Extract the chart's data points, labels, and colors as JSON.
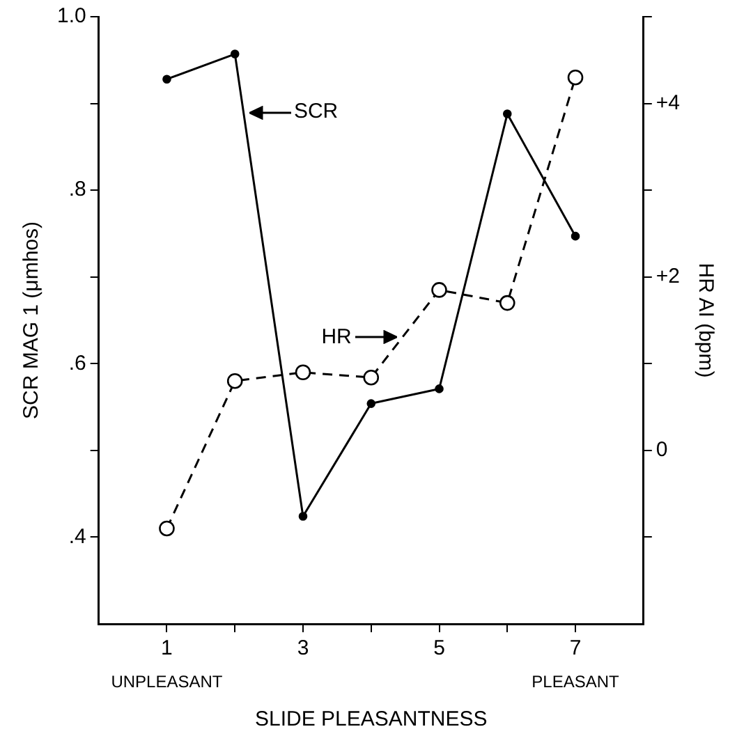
{
  "chart_data": {
    "type": "line",
    "xlabel": "SLIDE PLEASANTNESS",
    "ylabel": "SCR MAG 1 (μmhos)",
    "y2label": "HR AI (bpm)",
    "x": [
      1,
      2,
      3,
      4,
      5,
      6,
      7
    ],
    "series": [
      {
        "color": "#000000",
        "values": [
          0.928,
          0.957,
          0.424,
          0.554,
          0.571,
          0.888,
          0.747
        ],
        "marker": "circle",
        "line_style": "solid"
      },
      {
        "color": "#000000",
        "axis": "y2",
        "values": [
          -0.9,
          0.8,
          0.9,
          0.84,
          1.85,
          1.7,
          4.3
        ],
        "marker": "circle",
        "line_style": "dashed"
      }
    ],
    "xlim": [
      0,
      8
    ],
    "xticks": [
      1,
      {
        "value": 2,
        "label": null
      },
      3,
      {
        "value": 4,
        "label": null
      },
      5,
      {
        "value": 6,
        "label": null
      },
      7
    ],
    "ylim": [
      0.3,
      1.0
    ],
    "yticks": [
      {
        "value": 0.4,
        "label": ".4"
      },
      {
        "value": 0.5,
        "label": null
      },
      {
        "value": 0.6,
        "label": ".6"
      },
      {
        "value": 0.7,
        "label": null
      },
      {
        "value": 0.8,
        "label": ".8"
      },
      {
        "value": 0.9,
        "label": null
      },
      {
        "value": 1.0,
        "label": "1.0"
      }
    ],
    "y2lim": [
      -2,
      5
    ],
    "y2ticks": [
      {
        "value": -1,
        "label": null
      },
      0,
      {
        "value": 1,
        "label": null
      },
      {
        "value": 2,
        "label": "+2"
      },
      {
        "value": 3,
        "label": null
      },
      {
        "value": 4,
        "label": "+4"
      },
      {
        "value": 5,
        "label": null
      }
    ],
    "annotations": [
      {
        "text": "SCR",
        "x": 2.13,
        "y": 0.89
      },
      {
        "text": "HR",
        "x": 4.45,
        "y": 0.63
      },
      "UNPLEASANT",
      "PLEASANT"
    ],
    "grid": false,
    "legend": false
  }
}
